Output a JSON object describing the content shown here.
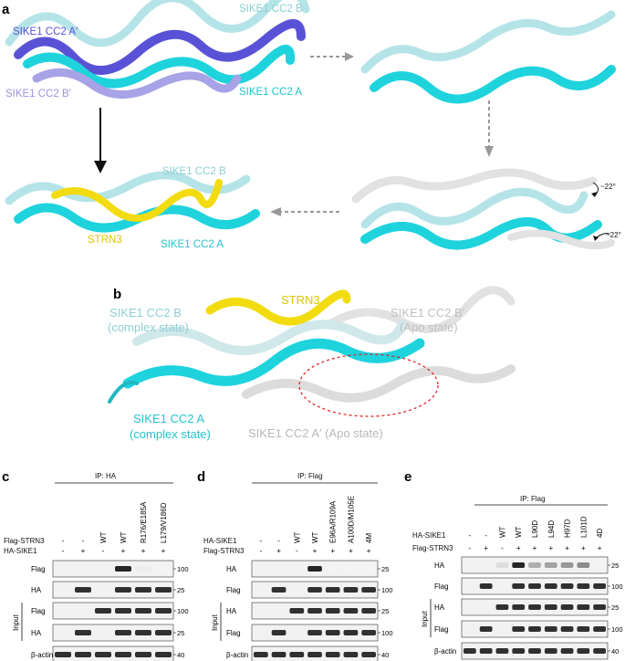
{
  "figure": {
    "panel_a": {
      "letter": "a",
      "labels": {
        "cc2_b": "SIKE1 CC2 B",
        "cc2_a_prime": "SIKE1 CC2 A′",
        "cc2_b_prime": "SIKE1 CC2 B′",
        "cc2_a": "SIKE1 CC2 A",
        "cc2_b_complex": "SIKE1 CC2 B",
        "strn3": "STRN3",
        "cc2_a_complex": "SIKE1 CC2 A",
        "angle_top": "~22°",
        "angle_bottom": "~22°"
      }
    },
    "panel_b": {
      "letter": "b",
      "labels": {
        "cc2_b_line1": "SIKE1 CC2 B",
        "cc2_b_line2": "(complex state)",
        "strn3": "STRN3",
        "cc2_b_prime_line1": "SIKE1 CC2 B′",
        "cc2_b_prime_line2": "(Apo state)",
        "cc2_a_line1": "SIKE1 CC2 A",
        "cc2_a_line2": "(complex state)",
        "cc2_a_prime": "SIKE1 CC2 A′ (Apo state)"
      }
    },
    "panel_c": {
      "letter": "c",
      "ip": "IP: HA",
      "lanes": [
        {
          "flag_strn3": "-",
          "ha_sike1": "-"
        },
        {
          "flag_strn3": "-",
          "ha_sike1": "+"
        },
        {
          "flag_strn3": "WT",
          "ha_sike1": "-"
        },
        {
          "flag_strn3": "WT",
          "ha_sike1": "+"
        },
        {
          "flag_strn3": "R176/E185A",
          "ha_sike1": "+"
        },
        {
          "flag_strn3": "L179/V186D",
          "ha_sike1": "+"
        }
      ],
      "row_labels": {
        "top": "Flag-STRN3",
        "bottom": "HA-SIKE1"
      },
      "blots": [
        {
          "label": "Flag",
          "marker": "100"
        },
        {
          "label": "HA",
          "marker": "25"
        },
        {
          "label": "Flag",
          "marker": "100"
        },
        {
          "label": "HA",
          "marker": "25"
        },
        {
          "label": "β-actin",
          "marker": "40"
        }
      ],
      "input_label": "Input"
    },
    "panel_d": {
      "letter": "d",
      "ip": "IP: Flag",
      "lanes": [
        {
          "ha_sike1": "-",
          "flag_strn3": "-"
        },
        {
          "ha_sike1": "-",
          "flag_strn3": "+"
        },
        {
          "ha_sike1": "WT",
          "flag_strn3": "-"
        },
        {
          "ha_sike1": "WT",
          "flag_strn3": "+"
        },
        {
          "ha_sike1": "E96A/R109A",
          "flag_strn3": "+"
        },
        {
          "ha_sike1": "A100D/M105E",
          "flag_strn3": "+"
        },
        {
          "ha_sike1": "4M",
          "flag_strn3": "+"
        }
      ],
      "row_labels": {
        "top": "HA-SIKE1",
        "bottom": "Flag-STRN3"
      },
      "blots": [
        {
          "label": "HA",
          "marker": "25"
        },
        {
          "label": "Flag",
          "marker": "100"
        },
        {
          "label": "HA",
          "marker": "25"
        },
        {
          "label": "Flag",
          "marker": "100"
        },
        {
          "label": "β-actin",
          "marker": "40"
        }
      ],
      "input_label": "Input"
    },
    "panel_e": {
      "letter": "e",
      "ip": "IP: Flag",
      "lanes": [
        {
          "ha_sike1": "-",
          "flag_strn3": "-"
        },
        {
          "ha_sike1": "-",
          "flag_strn3": "+"
        },
        {
          "ha_sike1": "WT",
          "flag_strn3": "-"
        },
        {
          "ha_sike1": "WT",
          "flag_strn3": "+"
        },
        {
          "ha_sike1": "L90D",
          "flag_strn3": "+"
        },
        {
          "ha_sike1": "L94D",
          "flag_strn3": "+"
        },
        {
          "ha_sike1": "H97D",
          "flag_strn3": "+"
        },
        {
          "ha_sike1": "L101D",
          "flag_strn3": "+"
        },
        {
          "ha_sike1": "4D",
          "flag_strn3": "+"
        }
      ],
      "row_labels": {
        "top": "HA-SIKE1",
        "bottom": "Flag-STRN3"
      },
      "blots": [
        {
          "label": "HA",
          "marker": "25"
        },
        {
          "label": "Flag",
          "marker": "100"
        },
        {
          "label": "HA",
          "marker": "25"
        },
        {
          "label": "Flag",
          "marker": "100"
        },
        {
          "label": "β-actin",
          "marker": "40"
        }
      ],
      "input_label": "Input"
    },
    "colors": {
      "cyan": "#1fd3dd",
      "pale_cyan": "#b5e4e8",
      "blue": "#5a52d6",
      "lavender": "#a7a3e6",
      "yellow": "#f2dc10",
      "grey": "#d8d8d8",
      "label_cyan": "#24c3cf",
      "label_pale": "#8fcfd3",
      "label_blue": "#5a52d6",
      "label_lavender": "#9c93e3",
      "label_yellow": "#e0c400",
      "label_grey": "#b8b8b8",
      "ellipse": "#e0191c"
    }
  }
}
